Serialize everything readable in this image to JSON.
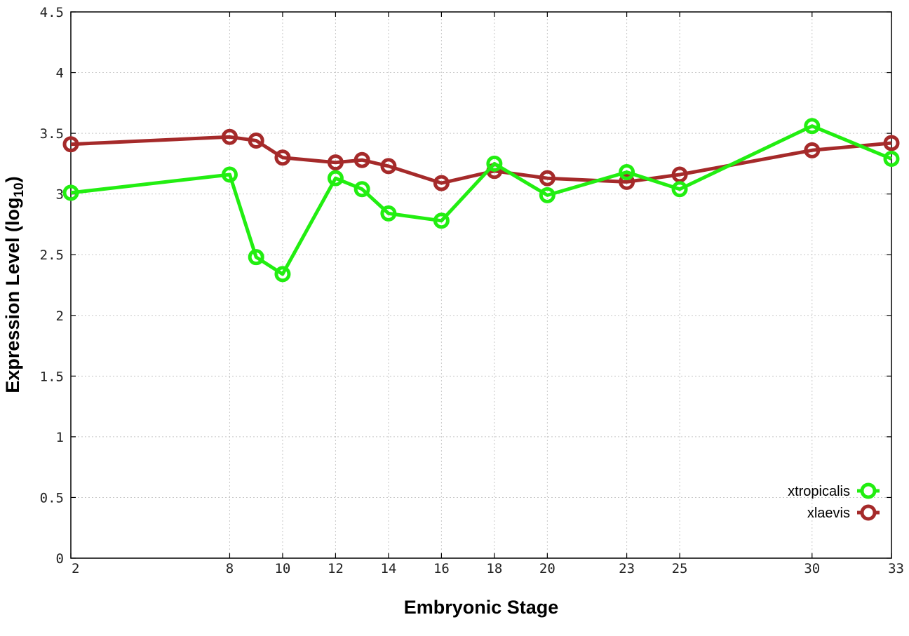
{
  "chart_data": {
    "type": "line",
    "xlabel": "Embryonic Stage",
    "ylabel_main": "Expression Level (log",
    "ylabel_sub": "10",
    "ylabel_close": ")",
    "xlim": [
      2,
      33
    ],
    "ylim": [
      0,
      4.5
    ],
    "x_ticks": [
      2,
      8,
      10,
      12,
      14,
      16,
      18,
      20,
      23,
      25,
      30,
      33
    ],
    "y_ticks": [
      0,
      0.5,
      1,
      1.5,
      2,
      2.5,
      3,
      3.5,
      4,
      4.5
    ],
    "y_tick_labels": [
      "0",
      "0.5",
      "1",
      "1.5",
      "2",
      "2.5",
      "3",
      "3.5",
      "4",
      "4.5"
    ],
    "grid": true,
    "legend_position": "bottom-right",
    "series": [
      {
        "name": "xtropicalis",
        "color": "#22ee11",
        "x": [
          2,
          8,
          9,
          10,
          12,
          13,
          14,
          16,
          18,
          20,
          23,
          25,
          30,
          33
        ],
        "y": [
          3.01,
          3.16,
          2.48,
          2.34,
          3.13,
          3.04,
          2.84,
          2.78,
          3.25,
          2.99,
          3.18,
          3.04,
          3.56,
          3.29
        ]
      },
      {
        "name": "xlaevis",
        "color": "#a52a2a",
        "x": [
          2,
          8,
          9,
          10,
          12,
          13,
          14,
          16,
          18,
          20,
          23,
          25,
          30,
          33
        ],
        "y": [
          3.41,
          3.47,
          3.44,
          3.3,
          3.26,
          3.28,
          3.23,
          3.09,
          3.19,
          3.13,
          3.1,
          3.16,
          3.36,
          3.42
        ]
      }
    ]
  }
}
